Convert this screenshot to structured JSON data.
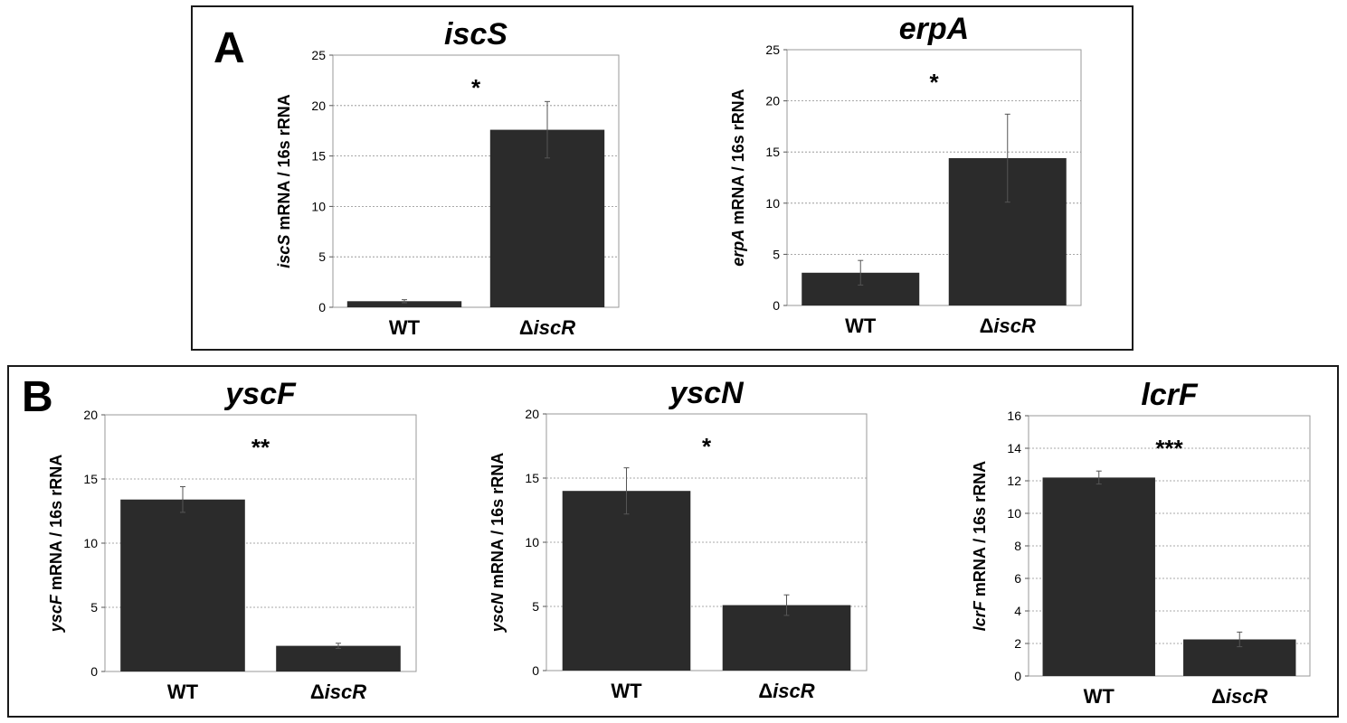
{
  "panels": [
    {
      "letter": "A"
    },
    {
      "letter": "B"
    }
  ],
  "chart_data": [
    {
      "type": "bar",
      "panel": "A",
      "title": "iscS",
      "categories": [
        "WT",
        "iscR"
      ],
      "category_prefix": [
        "",
        "Δ"
      ],
      "values": [
        0.6,
        17.6
      ],
      "errors": [
        0.15,
        2.8
      ],
      "significance": "*",
      "ylabel_italic": "iscS",
      "ylabel_rest": " mRNA / 16s rRNA",
      "ylim": [
        0,
        25
      ],
      "yticks": [
        0,
        5,
        10,
        15,
        20,
        25
      ],
      "grid": true,
      "bar_color": "#2b2b2b"
    },
    {
      "type": "bar",
      "panel": "A",
      "title": "erpA",
      "categories": [
        "WT",
        "iscR"
      ],
      "category_prefix": [
        "",
        "Δ"
      ],
      "values": [
        3.2,
        14.4
      ],
      "errors": [
        1.2,
        4.3
      ],
      "significance": "*",
      "ylabel_italic": "erpA",
      "ylabel_rest": " mRNA / 16s rRNA",
      "ylim": [
        0,
        25
      ],
      "yticks": [
        0,
        5,
        10,
        15,
        20,
        25
      ],
      "grid": true,
      "bar_color": "#2b2b2b"
    },
    {
      "type": "bar",
      "panel": "B",
      "title": "yscF",
      "categories": [
        "WT",
        "iscR"
      ],
      "category_prefix": [
        "",
        "Δ"
      ],
      "values": [
        13.4,
        2.0
      ],
      "errors": [
        1.0,
        0.2
      ],
      "significance": "**",
      "ylabel_italic": "yscF",
      "ylabel_rest": " mRNA / 16s rRNA",
      "ylim": [
        0,
        20
      ],
      "yticks": [
        0,
        5,
        10,
        15,
        20
      ],
      "grid": true,
      "bar_color": "#2b2b2b"
    },
    {
      "type": "bar",
      "panel": "B",
      "title": "yscN",
      "categories": [
        "WT",
        "iscR"
      ],
      "category_prefix": [
        "",
        "Δ"
      ],
      "values": [
        14.0,
        5.1
      ],
      "errors": [
        1.8,
        0.8
      ],
      "significance": "*",
      "ylabel_italic": "yscN",
      "ylabel_rest": " mRNA / 16s rRNA",
      "ylim": [
        0,
        20
      ],
      "yticks": [
        0,
        5,
        10,
        15,
        20
      ],
      "grid": true,
      "bar_color": "#2b2b2b"
    },
    {
      "type": "bar",
      "panel": "B",
      "title": "lcrF",
      "categories": [
        "WT",
        "iscR"
      ],
      "category_prefix": [
        "",
        "Δ"
      ],
      "values": [
        12.2,
        2.25
      ],
      "errors": [
        0.4,
        0.45
      ],
      "significance": "***",
      "ylabel_italic": "lcrF",
      "ylabel_rest": " mRNA / 16s rRNA",
      "ylim": [
        0,
        16
      ],
      "yticks": [
        0,
        2,
        4,
        6,
        8,
        10,
        12,
        14,
        16
      ],
      "grid": true,
      "bar_color": "#2b2b2b"
    }
  ]
}
